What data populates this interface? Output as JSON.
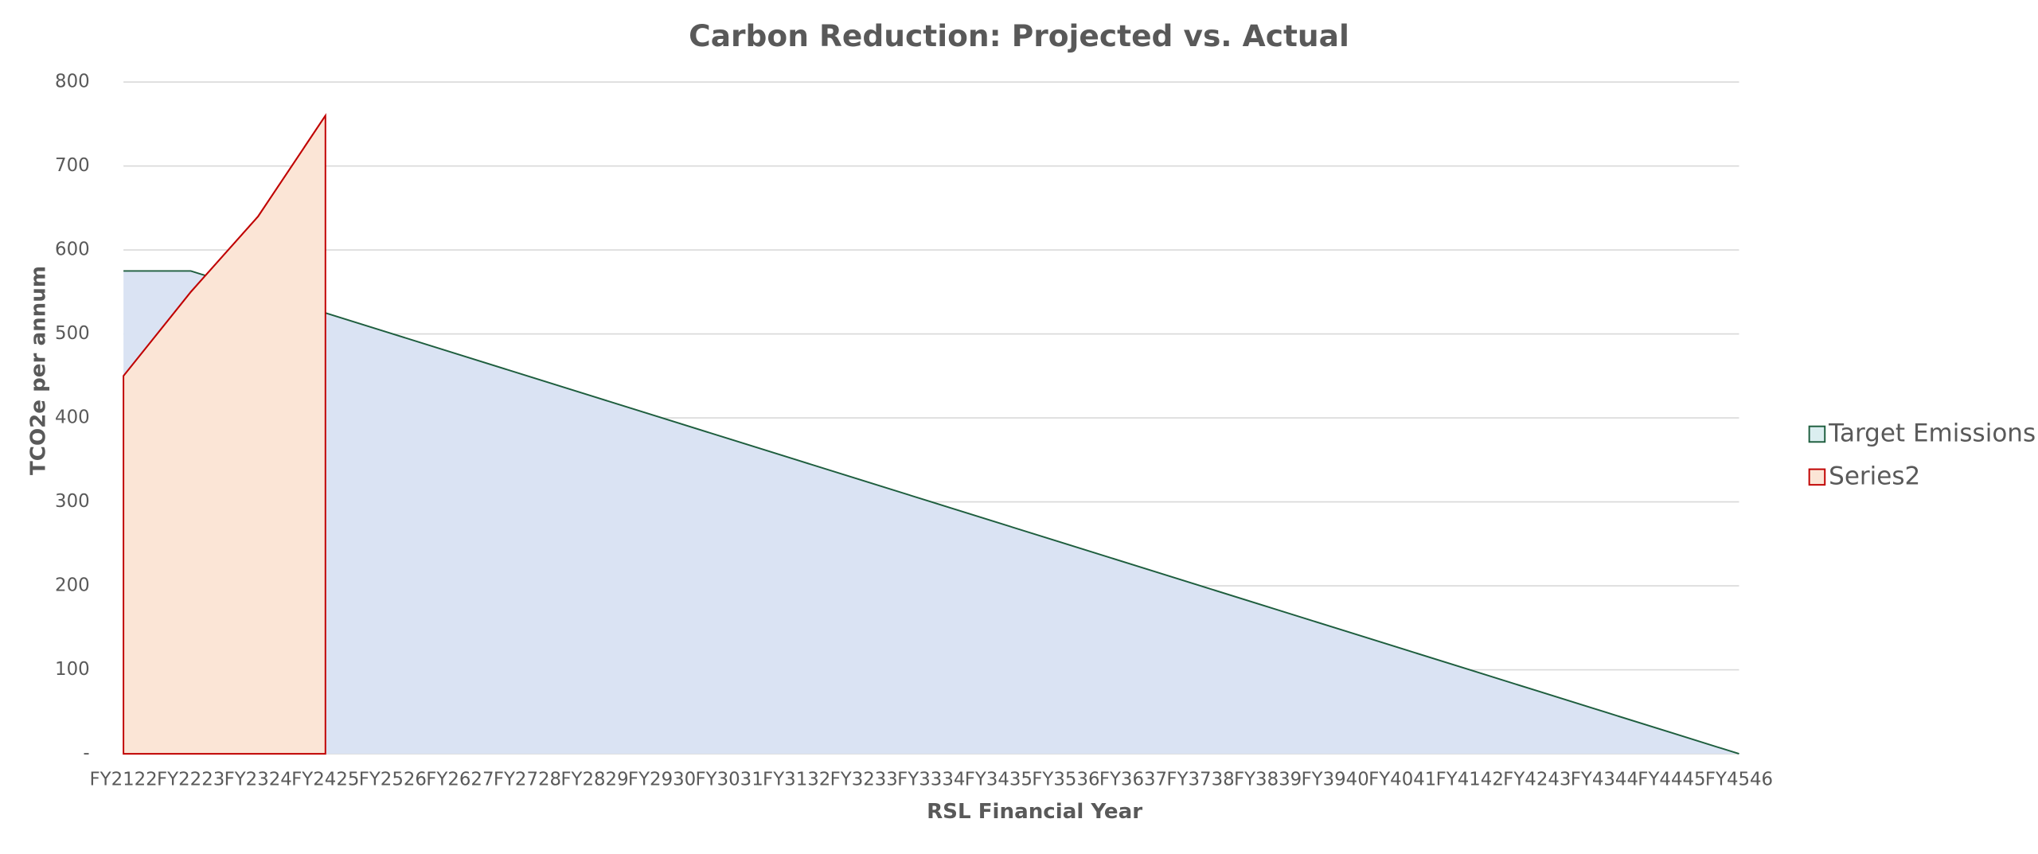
{
  "chart_data": {
    "type": "area",
    "title": "Carbon Reduction: Projected vs. Actual",
    "x_label": "RSL Financial Year",
    "y_label": "TCO2e per annum",
    "categories": [
      "FY2122",
      "FY2223",
      "FY2324",
      "FY2425",
      "FY2526",
      "FY2627",
      "FY2728",
      "FY2829",
      "FY2930",
      "FY3031",
      "FY3132",
      "FY3233",
      "FY3334",
      "FY3435",
      "FY3536",
      "FY3637",
      "FY3738",
      "FY3839",
      "FY3940",
      "FY4041",
      "FY4142",
      "FY4243",
      "FY4344",
      "FY4445",
      "FY4546"
    ],
    "series": [
      {
        "name": "Target Emissions",
        "color": "#dae3f3",
        "line_color": "#1e5e3e",
        "legend_color": "#dbeef0",
        "values": [
          575,
          575,
          550,
          525,
          500,
          475,
          450,
          425,
          400,
          375,
          350,
          325,
          300,
          275,
          250,
          225,
          200,
          175,
          150,
          125,
          100,
          75,
          50,
          25,
          0
        ]
      },
      {
        "name": "Series2",
        "color": "#fbe5d6",
        "line_color": "#c00000",
        "values": [
          450,
          550,
          640,
          760,
          null,
          null,
          null,
          null,
          null,
          null,
          null,
          null,
          null,
          null,
          null,
          null,
          null,
          null,
          null,
          null,
          null,
          null,
          null,
          null,
          null
        ]
      }
    ],
    "ylim": [
      0,
      800
    ],
    "yticks": [
      {
        "value": 0,
        "label": "-"
      },
      100,
      200,
      300,
      400,
      500,
      600,
      700,
      800
    ],
    "grid": true,
    "legend": "right"
  }
}
